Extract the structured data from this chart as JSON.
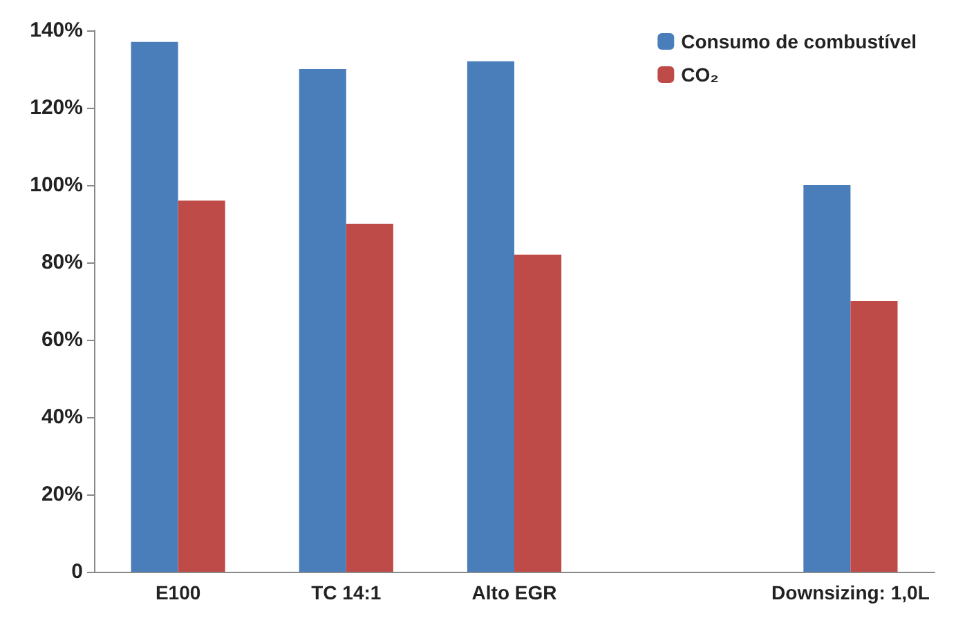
{
  "chart_data": {
    "type": "bar",
    "categories": [
      "E100",
      "TC 14:1",
      "Alto EGR",
      null,
      "Downsizing: 1,0L"
    ],
    "series": [
      {
        "name": "Consumo de combustível",
        "color": "#4a7ebb",
        "values": [
          137,
          130,
          132,
          null,
          100
        ]
      },
      {
        "name": "CO₂",
        "color": "#be4b48",
        "values": [
          96,
          90,
          82,
          null,
          70
        ]
      }
    ],
    "ylim": [
      0,
      140
    ],
    "yticks": [
      0,
      {
        "value": 20,
        "label": "20%"
      },
      {
        "value": 40,
        "label": "40%"
      },
      {
        "value": 60,
        "label": "60%"
      },
      {
        "value": 80,
        "label": "80%"
      },
      {
        "value": 100,
        "label": "100%"
      },
      {
        "value": 120,
        "label": "120%"
      },
      {
        "value": 140,
        "label": "140%"
      }
    ],
    "grid": false,
    "legend": "top right"
  }
}
